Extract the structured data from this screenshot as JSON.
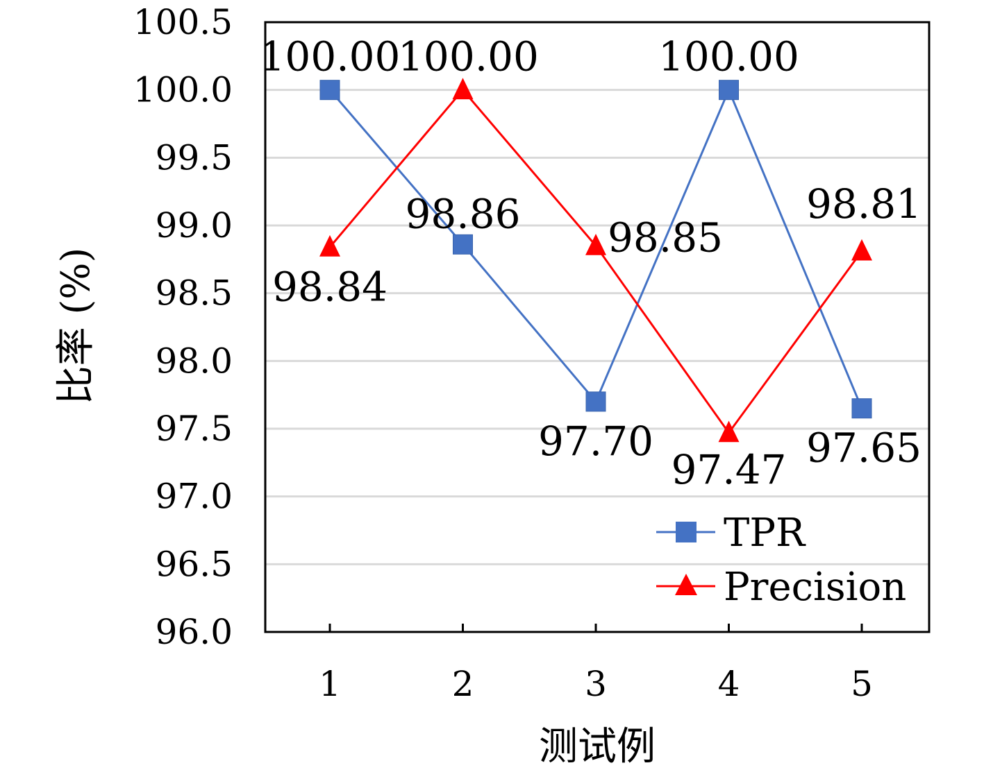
{
  "chart_data": {
    "type": "line",
    "title": "",
    "xlabel": "测试例",
    "ylabel": "比率 (%)",
    "categories": [
      "1",
      "2",
      "3",
      "4",
      "5"
    ],
    "x": [
      1,
      2,
      3,
      4,
      5
    ],
    "ylim": [
      96.0,
      100.5
    ],
    "yticks": [
      96.0,
      96.5,
      97.0,
      97.5,
      98.0,
      98.5,
      99.0,
      99.5,
      100.0,
      100.5
    ],
    "ytick_labels": [
      "96.0",
      "96.5",
      "97.0",
      "97.5",
      "98.0",
      "98.5",
      "99.0",
      "99.5",
      "100.0",
      "100.5"
    ],
    "grid": "horizontal",
    "legend_position": "bottom-right",
    "series": [
      {
        "name": "TPR",
        "marker": "square",
        "color": "#4472C4",
        "values": [
          100.0,
          98.86,
          97.7,
          100.0,
          97.65
        ],
        "labels": [
          "100.00",
          "98.86",
          "97.70",
          "100.00",
          "97.65"
        ]
      },
      {
        "name": "Precision",
        "marker": "triangle",
        "color": "#FF0000",
        "values": [
          98.84,
          100.0,
          98.85,
          97.47,
          98.81
        ],
        "labels": [
          "98.84",
          "100.00",
          "98.85",
          "97.47",
          "98.81"
        ]
      }
    ]
  }
}
